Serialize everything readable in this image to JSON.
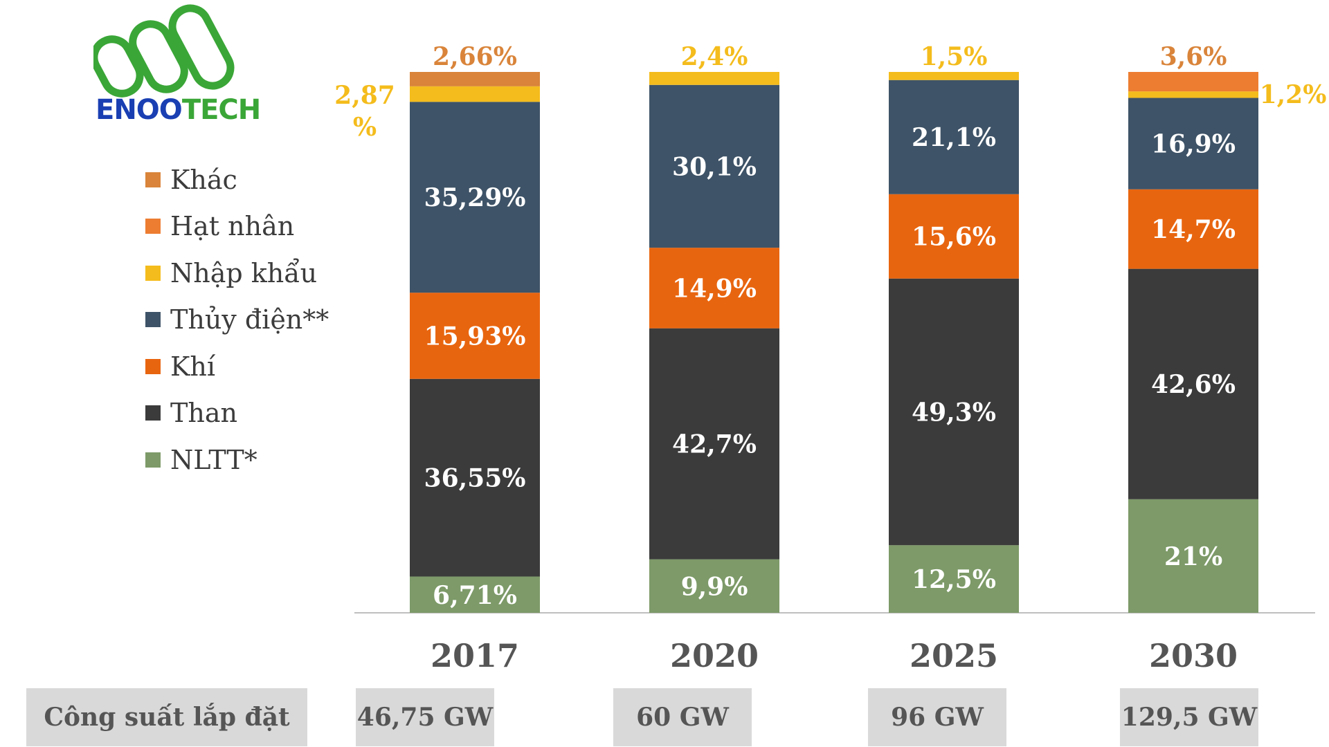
{
  "logo": {
    "text_a": "ENOO",
    "text_b": "TECH"
  },
  "legend": [
    {
      "label": "Khác",
      "color": "#d9843a"
    },
    {
      "label": "Hạt nhân",
      "color": "#ed7d31"
    },
    {
      "label": "Nhập khẩu",
      "color": "#f4bc1c"
    },
    {
      "label": "Thủy điện**",
      "color": "#3e5367"
    },
    {
      "label": "Khí",
      "color": "#e8650f"
    },
    {
      "label": "Than",
      "color": "#3b3b3b"
    },
    {
      "label": "NLTT*",
      "color": "#7d9a68"
    }
  ],
  "chart_data": {
    "type": "bar",
    "stacked": true,
    "normalized": true,
    "categories": [
      "2017",
      "2020",
      "2025",
      "2030"
    ],
    "series": [
      {
        "name": "NLTT*",
        "color": "#7d9a68",
        "label_color": "#ffffff",
        "values": [
          6.71,
          9.9,
          12.5,
          21
        ],
        "labels": [
          "6,71%",
          "9,9%",
          "12,5%",
          "21%"
        ]
      },
      {
        "name": "Than",
        "color": "#3b3b3b",
        "label_color": "#ffffff",
        "values": [
          36.55,
          42.7,
          49.3,
          42.6
        ],
        "labels": [
          "36,55%",
          "42,7%",
          "49,3%",
          "42,6%"
        ]
      },
      {
        "name": "Khí",
        "color": "#e8650f",
        "label_color": "#ffffff",
        "values": [
          15.93,
          14.9,
          15.6,
          14.7
        ],
        "labels": [
          "15,93%",
          "14,9%",
          "15,6%",
          "14,7%"
        ]
      },
      {
        "name": "Thủy điện**",
        "color": "#3e5367",
        "label_color": "#ffffff",
        "values": [
          35.29,
          30.1,
          21.1,
          16.9
        ],
        "labels": [
          "35,29%",
          "30,1%",
          "21,1%",
          "16,9%"
        ]
      },
      {
        "name": "Nhập khẩu",
        "color": "#f4bc1c",
        "label_color": "#f4bc1c",
        "values": [
          2.87,
          2.4,
          1.5,
          1.2
        ],
        "labels": [
          "2,87 %",
          "2,4%",
          "1,5%",
          "1,2%"
        ]
      },
      {
        "name": "Hạt nhân",
        "color": "#ed7d31",
        "label_color": "#d9843a",
        "values": [
          0,
          0,
          0,
          3.6
        ],
        "labels": [
          "",
          "",
          "",
          "3,6%"
        ]
      },
      {
        "name": "Khác",
        "color": "#d9843a",
        "label_color": "#d9843a",
        "values": [
          2.66,
          0,
          0,
          0
        ],
        "labels": [
          "2,66%",
          "",
          "",
          ""
        ]
      }
    ],
    "ylim": [
      0,
      100
    ],
    "title": "",
    "xlabel": "",
    "ylabel": ""
  },
  "capacity": {
    "row_label": "Công suất lắp đặt",
    "values": [
      "46,75 GW",
      "60 GW",
      "96 GW",
      "129,5 GW"
    ]
  }
}
